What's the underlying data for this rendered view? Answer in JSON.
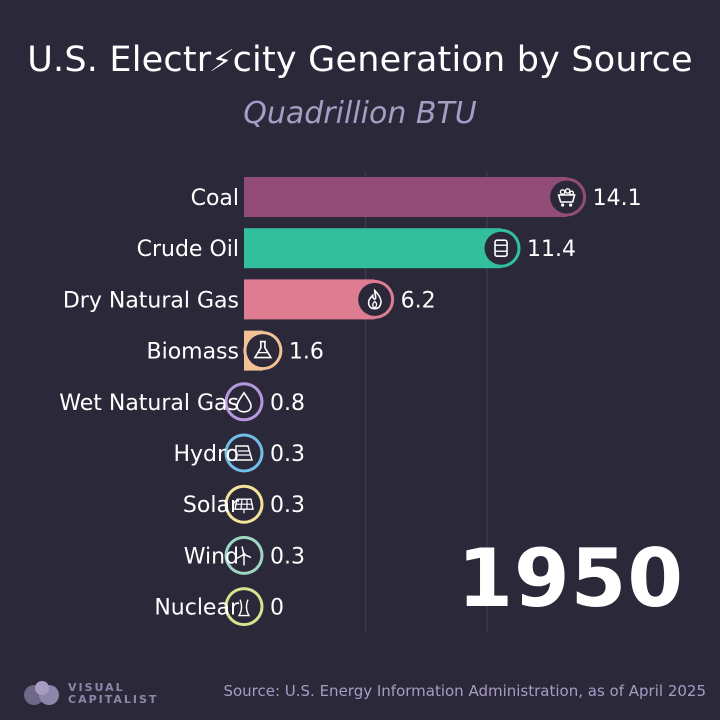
{
  "title_part1": "U.S. Electr",
  "title_part2": "city Generation by Source",
  "subtitle": "Quadrillion BTU",
  "year": "1950",
  "source": "Source: U.S. Energy Information Administration, as of April 2025",
  "logo": {
    "line1": "VISUAL",
    "line2": "CAPITALIST"
  },
  "chart_data": {
    "type": "bar",
    "orientation": "horizontal",
    "title": "U.S. Electricity Generation by Source",
    "subtitle": "Quadrillion BTU",
    "categories": [
      "Coal",
      "Crude Oil",
      "Dry Natural Gas",
      "Biomass",
      "Wet Natural Gas",
      "Hydro",
      "Solar",
      "Wind",
      "Nuclear"
    ],
    "values": [
      14.1,
      11.4,
      6.2,
      1.6,
      0.8,
      0.3,
      0.3,
      0.3,
      0
    ],
    "value_labels": [
      "14.1",
      "11.4",
      "6.2",
      "1.6",
      "0.8",
      "0.3",
      "0.3",
      "0.3",
      "0"
    ],
    "colors": [
      "#914d77",
      "#32bf9b",
      "#de7d91",
      "#f2c196",
      "#b698df",
      "#71bfe6",
      "#f2e29a",
      "#9ed6c3",
      "#d4e58f"
    ],
    "icons": [
      "coal-cart-icon",
      "oil-barrel-icon",
      "flame-icon",
      "flask-icon",
      "droplet-icon",
      "hydro-dam-icon",
      "solar-panel-icon",
      "wind-turbine-icon",
      "nuclear-tower-icon"
    ],
    "xlim": [
      0,
      16.5
    ],
    "gridlines": [
      5,
      10
    ],
    "legend": "none",
    "grid": true
  }
}
